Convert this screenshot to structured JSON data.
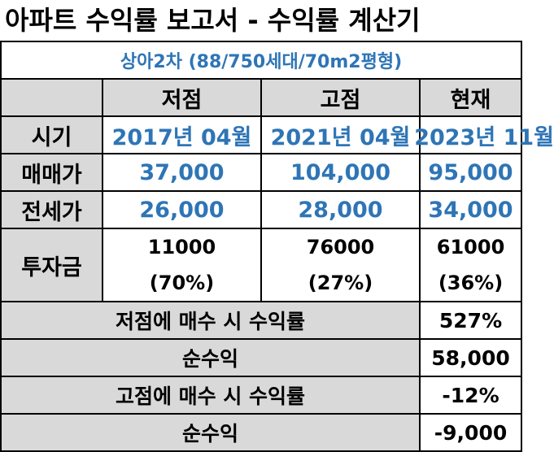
{
  "title": "아파트 수익률 보고서 - 수익률 계산기",
  "subtitle": "상아2차 (88/750세대/70m2평형)",
  "columns": [
    "저점",
    "고점",
    "현재"
  ],
  "rows": {
    "period": {
      "label": "시기",
      "values": [
        "2017년 04월",
        "2021년 04월",
        "2023년 11월"
      ]
    },
    "sale_price": {
      "label": "매매가",
      "values": [
        "37,000",
        "104,000",
        "95,000"
      ]
    },
    "jeonse_price": {
      "label": "전세가",
      "values": [
        "26,000",
        "28,000",
        "34,000"
      ]
    },
    "investment": {
      "label": "투자금",
      "amounts": [
        "11000",
        "76000",
        "61000"
      ],
      "ratios": [
        "(70%)",
        "(27%)",
        "(36%)"
      ]
    }
  },
  "summary": [
    {
      "label": "저점에 매수 시 수익률",
      "value": "527%"
    },
    {
      "label": "순수익",
      "value": "58,000"
    },
    {
      "label": "고점에 매수 시 수익률",
      "value": "-12%"
    },
    {
      "label": "순수익",
      "value": "-9,000"
    }
  ],
  "colors": {
    "accent_blue": "#2e75b6",
    "header_gray": "#d9d9d9"
  }
}
